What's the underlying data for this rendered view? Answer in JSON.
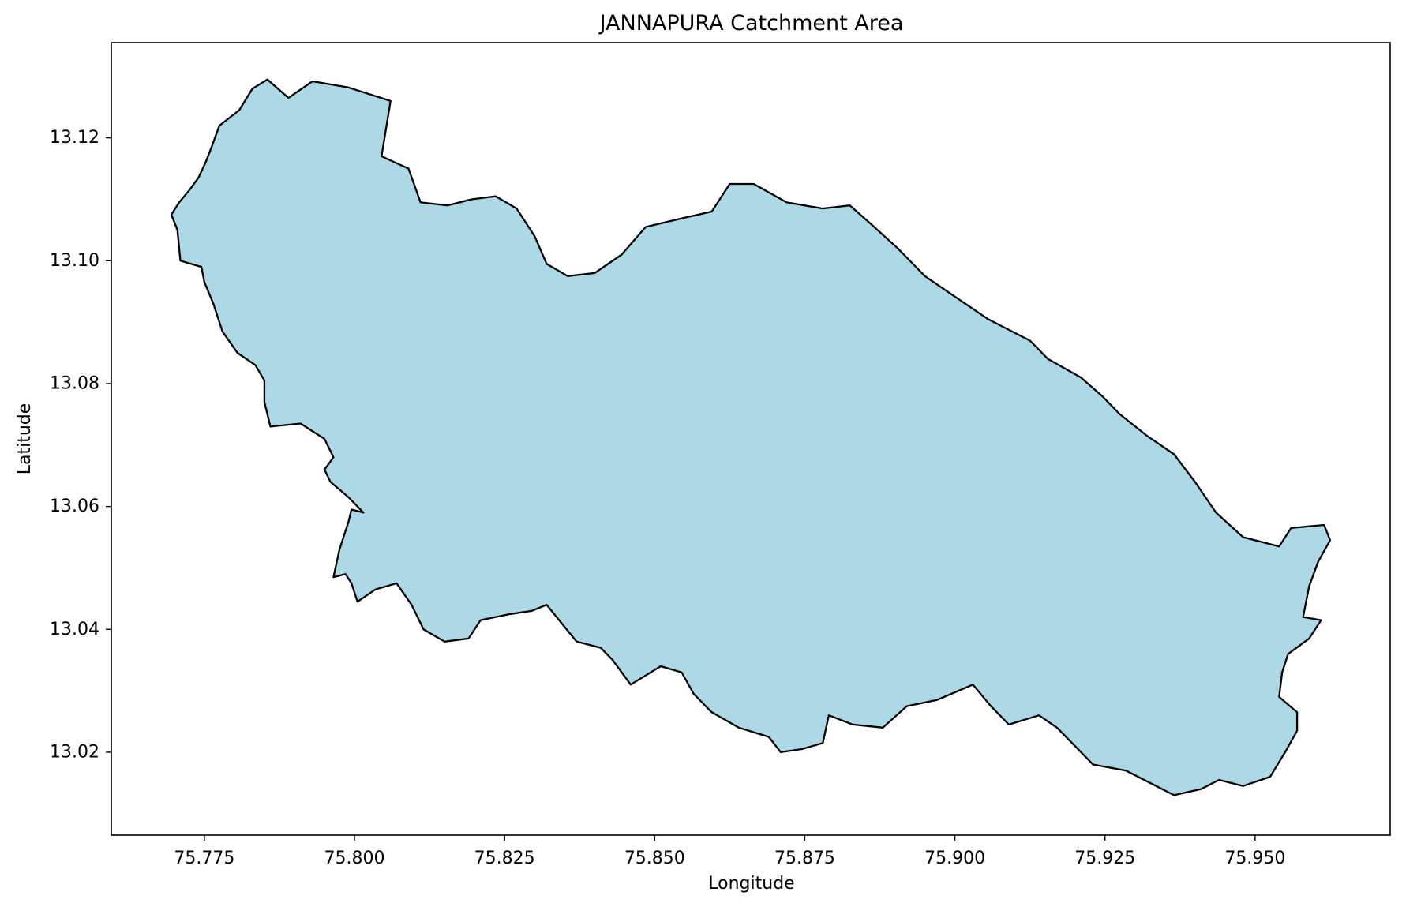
{
  "chart_data": {
    "type": "map",
    "title": "JANNAPURA Catchment Area",
    "xlabel": "Longitude",
    "ylabel": "Latitude",
    "xlim": [
      75.7595,
      75.9725
    ],
    "ylim": [
      13.0065,
      13.1355
    ],
    "xticks": [
      "75.775",
      "75.800",
      "75.825",
      "75.850",
      "75.875",
      "75.900",
      "75.925",
      "75.950"
    ],
    "yticks": [
      "13.02",
      "13.04",
      "13.06",
      "13.08",
      "13.10",
      "13.12"
    ],
    "grid": false,
    "fill_color": "#add8e6",
    "edge_color": "#000000",
    "boundary": [
      [
        75.7695,
        13.1075
      ],
      [
        75.7708,
        13.1095
      ],
      [
        75.7725,
        13.1115
      ],
      [
        75.774,
        13.1135
      ],
      [
        75.7752,
        13.116
      ],
      [
        75.7762,
        13.1185
      ],
      [
        75.7775,
        13.122
      ],
      [
        75.7808,
        13.1245
      ],
      [
        75.783,
        13.128
      ],
      [
        75.7855,
        13.1295
      ],
      [
        75.789,
        13.1265
      ],
      [
        75.793,
        13.1292
      ],
      [
        75.799,
        13.1282
      ],
      [
        75.806,
        13.126
      ],
      [
        75.8045,
        13.117
      ],
      [
        75.809,
        13.115
      ],
      [
        75.811,
        13.1095
      ],
      [
        75.8155,
        13.109
      ],
      [
        75.8195,
        13.11
      ],
      [
        75.8235,
        13.1105
      ],
      [
        75.827,
        13.1085
      ],
      [
        75.83,
        13.104
      ],
      [
        75.832,
        13.0995
      ],
      [
        75.8355,
        13.0975
      ],
      [
        75.84,
        13.098
      ],
      [
        75.8445,
        13.101
      ],
      [
        75.8485,
        13.1055
      ],
      [
        75.855,
        13.107
      ],
      [
        75.8595,
        13.108
      ],
      [
        75.8625,
        13.1125
      ],
      [
        75.8665,
        13.1125
      ],
      [
        75.872,
        13.1095
      ],
      [
        75.878,
        13.1085
      ],
      [
        75.8825,
        13.109
      ],
      [
        75.886,
        13.106
      ],
      [
        75.8905,
        13.102
      ],
      [
        75.895,
        13.0975
      ],
      [
        75.901,
        13.0935
      ],
      [
        75.9055,
        13.0905
      ],
      [
        75.9085,
        13.089
      ],
      [
        75.9125,
        13.087
      ],
      [
        75.9155,
        13.084
      ],
      [
        75.921,
        13.081
      ],
      [
        75.9245,
        13.078
      ],
      [
        75.9275,
        13.075
      ],
      [
        75.932,
        13.0715
      ],
      [
        75.9365,
        13.0685
      ],
      [
        75.94,
        13.064
      ],
      [
        75.9435,
        13.059
      ],
      [
        75.948,
        13.055
      ],
      [
        75.954,
        13.0535
      ],
      [
        75.956,
        13.0565
      ],
      [
        75.9615,
        13.057
      ],
      [
        75.9625,
        13.0545
      ],
      [
        75.9605,
        13.051
      ],
      [
        75.959,
        13.047
      ],
      [
        75.958,
        13.042
      ],
      [
        75.961,
        13.0415
      ],
      [
        75.959,
        13.0385
      ],
      [
        75.9555,
        13.036
      ],
      [
        75.9545,
        13.033
      ],
      [
        75.954,
        13.029
      ],
      [
        75.957,
        13.0265
      ],
      [
        75.957,
        13.0235
      ],
      [
        75.955,
        13.02
      ],
      [
        75.9525,
        13.016
      ],
      [
        75.948,
        13.0145
      ],
      [
        75.944,
        13.0155
      ],
      [
        75.941,
        13.014
      ],
      [
        75.9365,
        13.013
      ],
      [
        75.9325,
        13.015
      ],
      [
        75.9285,
        13.017
      ],
      [
        75.923,
        13.018
      ],
      [
        75.92,
        13.021
      ],
      [
        75.917,
        13.024
      ],
      [
        75.914,
        13.026
      ],
      [
        75.909,
        13.0245
      ],
      [
        75.906,
        13.0275
      ],
      [
        75.903,
        13.031
      ],
      [
        75.897,
        13.0285
      ],
      [
        75.892,
        13.0275
      ],
      [
        75.888,
        13.024
      ],
      [
        75.883,
        13.0245
      ],
      [
        75.879,
        13.026
      ],
      [
        75.878,
        13.0215
      ],
      [
        75.8745,
        13.0205
      ],
      [
        75.871,
        13.02
      ],
      [
        75.869,
        13.0225
      ],
      [
        75.864,
        13.024
      ],
      [
        75.8595,
        13.0265
      ],
      [
        75.8565,
        13.0295
      ],
      [
        75.8545,
        13.033
      ],
      [
        75.851,
        13.034
      ],
      [
        75.846,
        13.031
      ],
      [
        75.843,
        13.035
      ],
      [
        75.841,
        13.037
      ],
      [
        75.837,
        13.038
      ],
      [
        75.8345,
        13.041
      ],
      [
        75.832,
        13.044
      ],
      [
        75.8295,
        13.043
      ],
      [
        75.826,
        13.0425
      ],
      [
        75.821,
        13.0415
      ],
      [
        75.819,
        13.0385
      ],
      [
        75.815,
        13.038
      ],
      [
        75.8115,
        13.04
      ],
      [
        75.8095,
        13.044
      ],
      [
        75.807,
        13.0475
      ],
      [
        75.8035,
        13.0465
      ],
      [
        75.8005,
        13.0445
      ],
      [
        75.7995,
        13.0475
      ],
      [
        75.7985,
        13.049
      ],
      [
        75.7965,
        13.0485
      ],
      [
        75.7975,
        13.053
      ],
      [
        75.799,
        13.0575
      ],
      [
        75.7995,
        13.0595
      ],
      [
        75.8015,
        13.059
      ],
      [
        75.799,
        13.0615
      ],
      [
        75.796,
        13.064
      ],
      [
        75.795,
        13.066
      ],
      [
        75.7965,
        13.068
      ],
      [
        75.795,
        13.071
      ],
      [
        75.791,
        13.0735
      ],
      [
        75.786,
        13.073
      ],
      [
        75.785,
        13.077
      ],
      [
        75.785,
        13.0805
      ],
      [
        75.7835,
        13.083
      ],
      [
        75.7805,
        13.085
      ],
      [
        75.778,
        13.0885
      ],
      [
        75.7765,
        13.093
      ],
      [
        75.775,
        13.0965
      ],
      [
        75.7745,
        13.099
      ],
      [
        75.771,
        13.1
      ],
      [
        75.7705,
        13.105
      ],
      [
        75.7695,
        13.1075
      ]
    ]
  }
}
